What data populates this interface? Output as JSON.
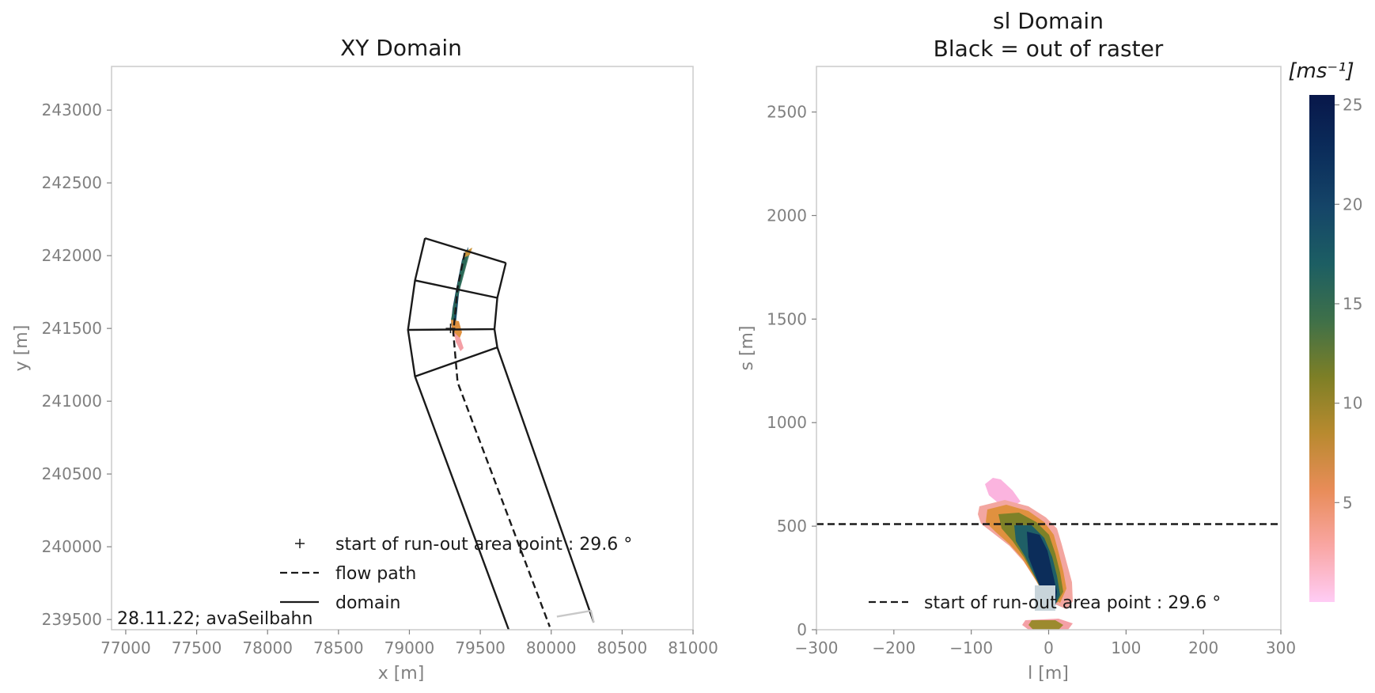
{
  "chart_data": [
    {
      "type": "line",
      "title": "XY Domain",
      "xlabel": "x [m]",
      "ylabel": "y [m]",
      "xlim": [
        76900,
        81000
      ],
      "ylim": [
        239430,
        243300
      ],
      "xticks": [
        77000,
        77500,
        78000,
        78500,
        79000,
        79500,
        80000,
        80500,
        81000
      ],
      "yticks": [
        239500,
        240000,
        240500,
        241000,
        241500,
        242000,
        242500,
        243000
      ],
      "grid": false,
      "legend_position": "bottom",
      "annotation": "28.11.22; avaSeilbahn",
      "series": [
        {
          "name": "domain",
          "style": "solid",
          "color": "#1a1a1a",
          "polylines": [
            [
              [
                79110,
                242120
              ],
              [
                79680,
                241950
              ]
            ],
            [
              [
                79040,
                241830
              ],
              [
                79620,
                241710
              ]
            ],
            [
              [
                78990,
                241490
              ],
              [
                79600,
                241495
              ]
            ],
            [
              [
                79040,
                241170
              ],
              [
                79620,
                241370
              ]
            ],
            [
              [
                79110,
                242120
              ],
              [
                79040,
                241830
              ],
              [
                78990,
                241490
              ],
              [
                79040,
                241170
              ],
              [
                79700,
                239430
              ]
            ],
            [
              [
                79680,
                241950
              ],
              [
                79620,
                241710
              ],
              [
                79600,
                241495
              ],
              [
                79620,
                241370
              ],
              [
                80300,
                239480
              ]
            ]
          ]
        },
        {
          "name": "flow path",
          "style": "dashed",
          "color": "#1a1a1a",
          "points": [
            [
              79390,
              242020
            ],
            [
              79340,
              241780
            ],
            [
              79310,
              241470
            ],
            [
              79340,
              241130
            ],
            [
              79990,
              239450
            ]
          ]
        },
        {
          "name": "start of run-out area point : 29.6 °",
          "marker": "plus",
          "points": [
            [
              79290,
              241500
            ]
          ]
        }
      ]
    },
    {
      "type": "heatmap",
      "title": "sl Domain",
      "subtitle": "Black = out of raster",
      "xlabel": "l [m]",
      "ylabel": "s [m]",
      "xlim": [
        -300,
        300
      ],
      "ylim": [
        0,
        2720
      ],
      "xticks": [
        -300,
        -200,
        -100,
        0,
        100,
        200,
        300
      ],
      "xtick_labels": [
        "−300",
        "−200",
        "−100",
        "0",
        "100",
        "200",
        "300"
      ],
      "yticks": [
        0,
        500,
        1000,
        1500,
        2000,
        2500
      ],
      "grid": false,
      "legend_position": "bottom-right",
      "colorbar": {
        "label": "[ms⁻¹]",
        "min": 0,
        "max": 25.5,
        "ticks": [
          5,
          10,
          15,
          20,
          25
        ],
        "colormap": [
          "#ffccf5",
          "#f9a6a3",
          "#e88c58",
          "#b88a2f",
          "#7d7f26",
          "#3e7049",
          "#1c5e63",
          "#154568",
          "#0b2d5b",
          "#08174a"
        ]
      },
      "series": [
        {
          "name": "start of run-out area point : 29.6 °",
          "style": "dashed",
          "color": "#1a1a1a",
          "y": 510,
          "x_range": [
            -300,
            300
          ]
        }
      ]
    }
  ]
}
